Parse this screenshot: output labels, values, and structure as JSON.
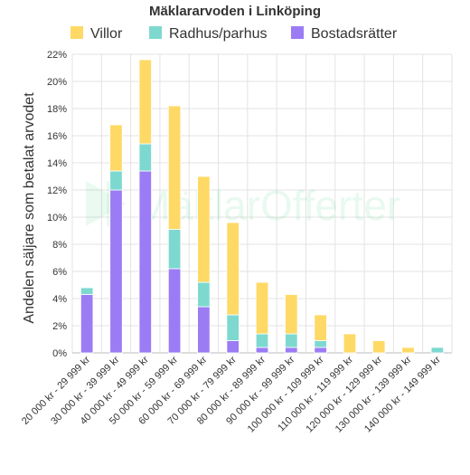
{
  "chart_data": {
    "type": "bar",
    "stacked": true,
    "title": "Mäklararvoden i Linköping",
    "xlabel": "",
    "ylabel": "Andelen säljare som betalat arvodet",
    "ylim": [
      0,
      22
    ],
    "y_tick_step": 2,
    "y_tick_suffix": "%",
    "grid": true,
    "legend_position": "top",
    "watermark": "MäklarOfferter",
    "categories": [
      "20 000 kr - 29 999 kr",
      "30 000 kr - 39 999 kr",
      "40 000 kr - 49 999 kr",
      "50 000 kr - 59 999 kr",
      "60 000 kr - 69 999 kr",
      "70 000 kr - 79 999 kr",
      "80 000 kr - 89 999 kr",
      "90 000 kr - 99 999 kr",
      "100 000 kr - 109 999 kr",
      "110 000 kr - 119 999 kr",
      "120 000 kr - 129 999 kr",
      "130 000 kr - 139 999 kr",
      "140 000 kr - 149 999 kr"
    ],
    "series": [
      {
        "name": "Bostadsrätter",
        "color": "#9b7cf4",
        "values": [
          4.3,
          12.0,
          13.4,
          6.2,
          3.4,
          0.9,
          0.4,
          0.4,
          0.4,
          0,
          0,
          0,
          0
        ]
      },
      {
        "name": "Radhus/parhus",
        "color": "#7dd9d0",
        "values": [
          0.5,
          1.4,
          2.0,
          2.9,
          1.8,
          1.9,
          1.0,
          1.0,
          0.5,
          0,
          0,
          0,
          0.4
        ]
      },
      {
        "name": "Villor",
        "color": "#ffd966",
        "values": [
          0,
          3.4,
          6.2,
          9.1,
          7.8,
          6.8,
          3.8,
          2.9,
          1.9,
          1.4,
          0.9,
          0.4,
          0
        ]
      }
    ],
    "legend_order": [
      "Villor",
      "Radhus/parhus",
      "Bostadsrätter"
    ]
  }
}
